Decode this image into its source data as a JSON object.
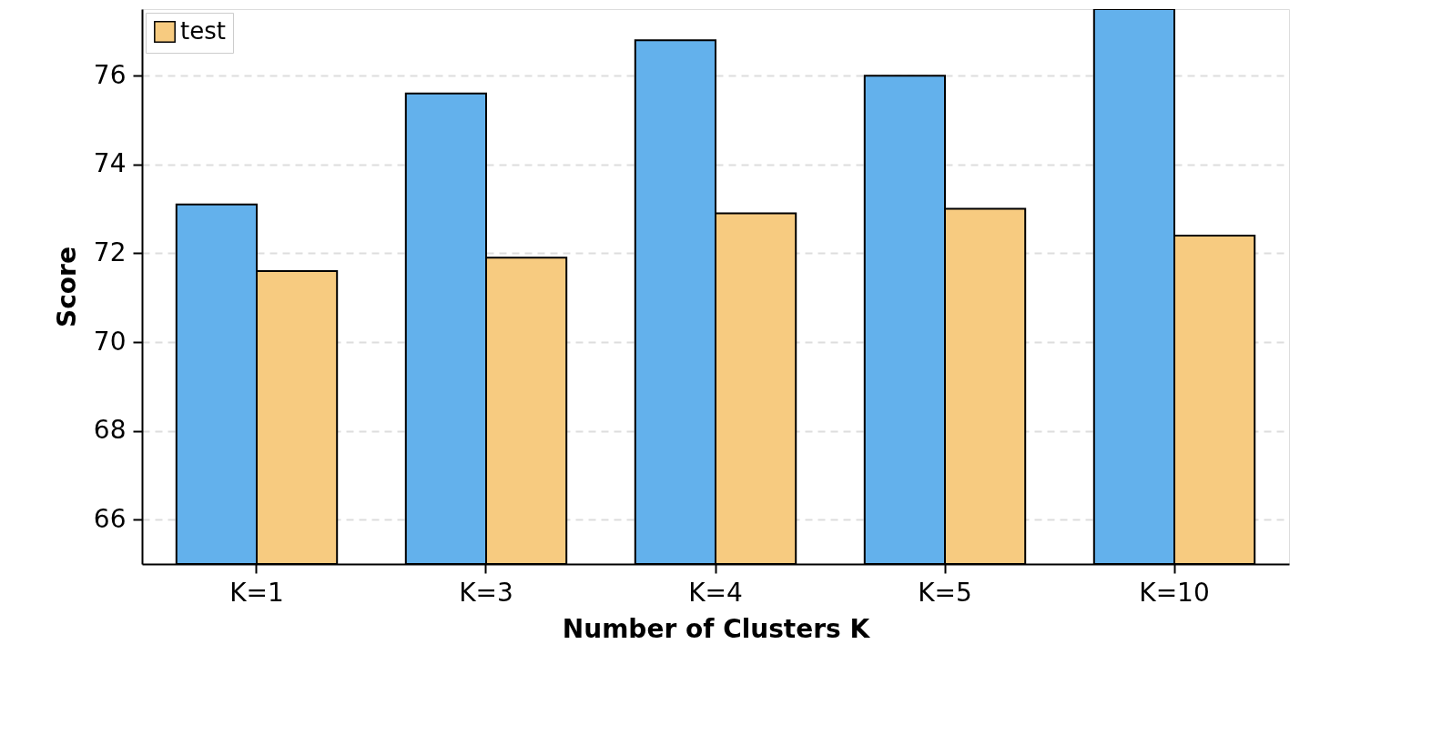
{
  "chart_data": {
    "type": "bar",
    "xlabel": "Number of Clusters K",
    "ylabel": "Score",
    "categories": [
      "K=1",
      "K=3",
      "K=4",
      "K=5",
      "K=10"
    ],
    "series": [
      {
        "color": "#63b1ec",
        "values": [
          73.1,
          75.6,
          76.8,
          76.0,
          77.5
        ]
      },
      {
        "name": "test",
        "color": "#f7cb80",
        "values": [
          71.6,
          71.9,
          72.9,
          73.0,
          72.4
        ]
      }
    ],
    "ylim": [
      65,
      77.5
    ],
    "yticks": [
      66,
      68,
      70,
      72,
      74,
      76
    ],
    "grid": "y",
    "legend": "top left"
  }
}
